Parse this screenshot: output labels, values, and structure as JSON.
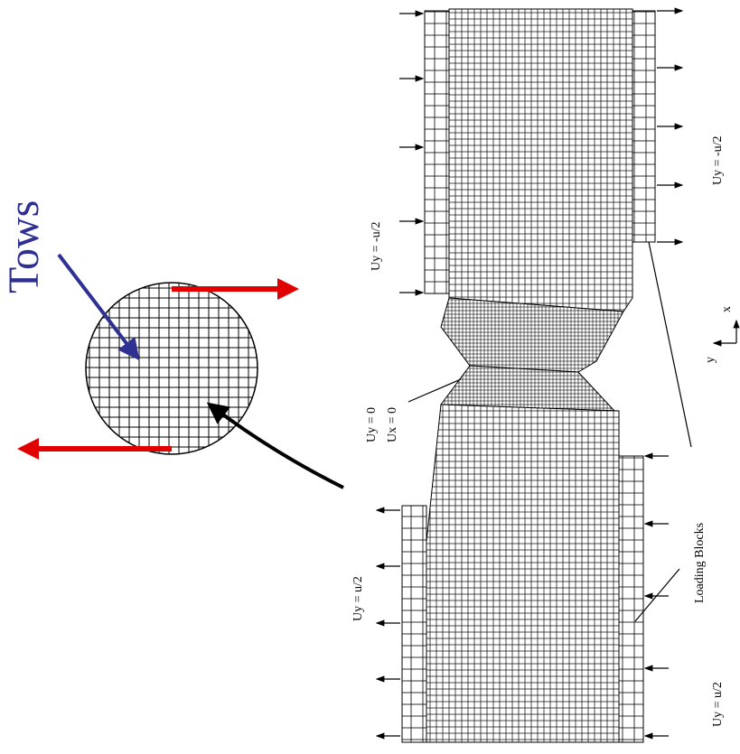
{
  "labels": {
    "tows": "Tows",
    "top_left": "Uy = -u/2",
    "top_right": "Uy = -u/2",
    "center_uy": "Uy = 0",
    "center_ux": "Ux = 0",
    "loading_blocks": "Loading Blocks",
    "bottom_left": "Uy = u/2",
    "bottom_right": "Uy = u/2",
    "axis_y": "y",
    "axis_x": "x"
  }
}
